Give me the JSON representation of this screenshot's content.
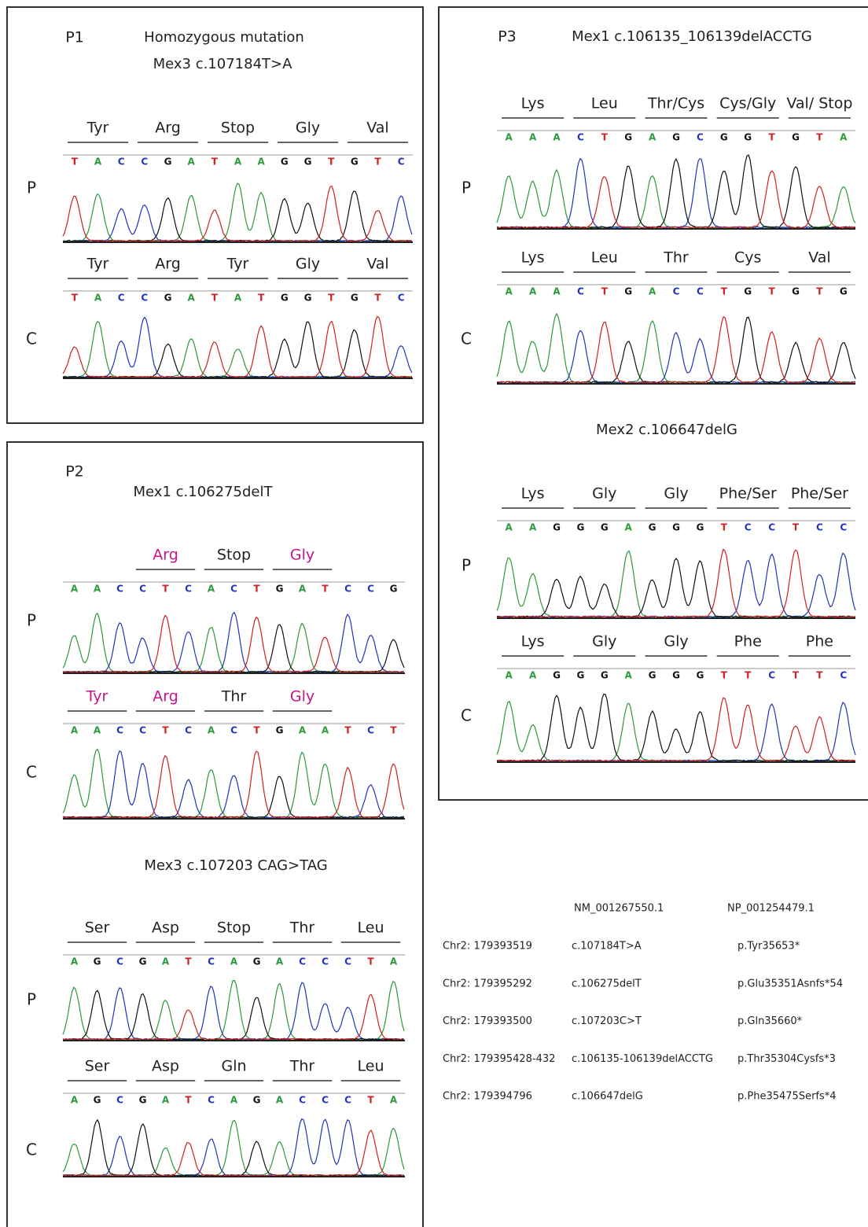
{
  "panels": [
    {
      "label": "P1",
      "sections": [
        {
          "title": [
            "Homozygous mutation",
            "Mex3  c.107184T>A"
          ],
          "tracks": [
            {
              "row": "P",
              "aa": [
                "Tyr",
                "Arg",
                "Stop",
                "Gly",
                "Val"
              ],
              "bases": "TACCGATAAGGTGTC"
            },
            {
              "row": "C",
              "aa": [
                "Tyr",
                "Arg",
                "Tyr",
                "Gly",
                "Val"
              ],
              "bases": "TACCGATATGGTGTC"
            }
          ]
        }
      ]
    },
    {
      "label": "P2",
      "sections": [
        {
          "title": [
            "Mex1  c.106275delT"
          ],
          "tracks": [
            {
              "row": "P",
              "aa": [
                null,
                "Arg",
                "Stop",
                "Gly",
                null
              ],
              "highlight": [
                1,
                3
              ],
              "highlight_color": "#c8148c",
              "bases": "AACCTCACTGATCCG"
            },
            {
              "row": "C",
              "aa": [
                "Tyr",
                "Arg",
                "Thr",
                "Gly",
                null
              ],
              "highlight": [
                0,
                1,
                3
              ],
              "highlight_color": "#c8148c",
              "bases": "AACCTCACTGAATCT"
            }
          ]
        },
        {
          "title": [
            "Mex3  c.107203 CAG>TAG"
          ],
          "tracks": [
            {
              "row": "P",
              "aa": [
                "Ser",
                "Asp",
                "Stop",
                "Thr",
                "Leu"
              ],
              "bases": "AGCGATCAGACCCTA"
            },
            {
              "row": "C",
              "aa": [
                "Ser",
                "Asp",
                "Gln",
                "Thr",
                "Leu"
              ],
              "bases": "AGCGATCAGACCCTA"
            }
          ]
        }
      ]
    },
    {
      "label": "P3",
      "sections": [
        {
          "title": [
            "Mex1  c.106135_106139delACCTG"
          ],
          "tracks": [
            {
              "row": "P",
              "aa": [
                "Lys",
                "Leu",
                "Thr/Cys",
                "Cys/Gly",
                "Val/ Stop"
              ],
              "bases": "AAACTGAGCGGTGTA"
            },
            {
              "row": "C",
              "aa": [
                "Lys",
                "Leu",
                "Thr",
                "Cys",
                "Val"
              ],
              "bases": "AAACTGACCTGTGTG"
            }
          ]
        },
        {
          "title": [
            "Mex2  c.106647delG"
          ],
          "tracks": [
            {
              "row": "P",
              "aa": [
                "Lys",
                "Gly",
                "Gly",
                "Phe/Ser",
                "Phe/Ser"
              ],
              "bases": "AAGGGAGGGTCCTCC"
            },
            {
              "row": "C",
              "aa": [
                "Lys",
                "Gly",
                "Gly",
                "Phe",
                "Phe"
              ],
              "bases": "AAGGGAGGGTTCTTC"
            }
          ]
        }
      ]
    }
  ],
  "table": {
    "header": [
      "NM_001267550.1",
      "NP_001254479.1"
    ],
    "rows": [
      [
        "Chr2: 179393519",
        "c.107184T>A",
        "p.Tyr35653*"
      ],
      [
        "Chr2: 179395292",
        "c.106275delT",
        "p.Glu35351Asnfs*54"
      ],
      [
        "Chr2: 179393500",
        "c.107203C>T",
        "p.Gln35660*"
      ],
      [
        "Chr2: 179395428-432",
        "c.106135-106139delACCTG",
        "p.Thr35304Cysfs*3"
      ],
      [
        "Chr2: 179394796",
        "c.106647delG",
        "p.Phe35475Serfs*4"
      ]
    ]
  }
}
